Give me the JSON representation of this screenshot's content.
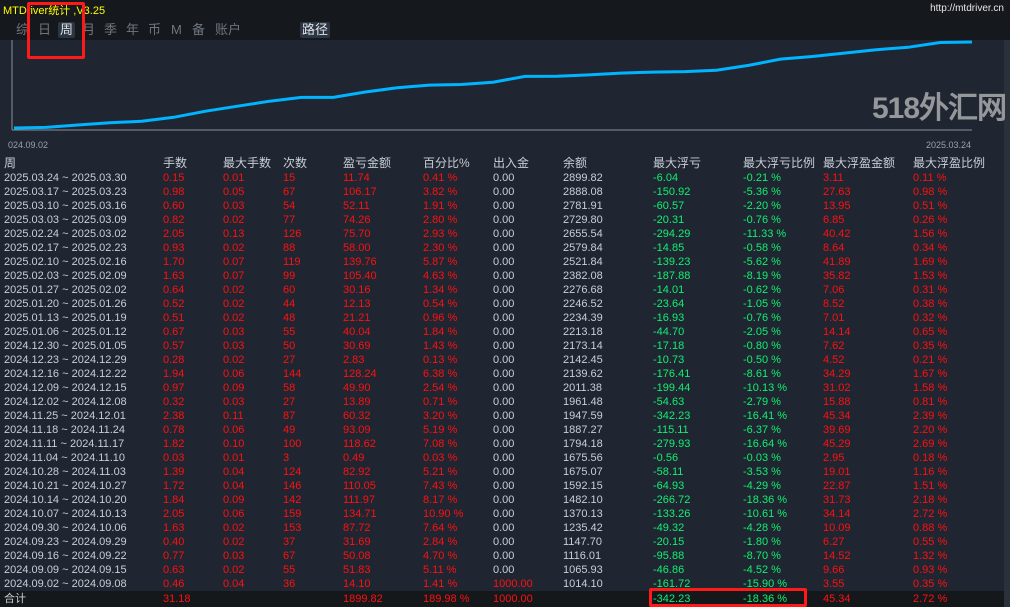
{
  "app": {
    "title": "MTDriver统计 ,V3.25",
    "url": "http://mtdriver.cn"
  },
  "tabs": [
    {
      "label": "综"
    },
    {
      "label": "日"
    },
    {
      "label": "周",
      "active": true
    },
    {
      "label": "月"
    },
    {
      "label": "季"
    },
    {
      "label": "年"
    },
    {
      "label": "币"
    },
    {
      "label": "M"
    },
    {
      "label": "备"
    },
    {
      "label": "账户"
    },
    {
      "label": "路径",
      "active": true
    }
  ],
  "chart": {
    "x_start": "024.09.02",
    "x_end": "2025.03.24",
    "line_color": "#00b4ff"
  },
  "table": {
    "headers": [
      "周",
      "手数",
      "最大手数",
      "次数",
      "盈亏金额",
      "百分比%",
      "出入金",
      "余额",
      "最大浮亏",
      "最大浮亏比例",
      "最大浮盈金额",
      "最大浮盈比例"
    ],
    "rows": [
      [
        "2025.03.24 ~ 2025.03.30",
        "0.15",
        "0.01",
        "15",
        "11.74",
        "0.41 %",
        "0.00",
        "2899.82",
        "-6.04",
        "-0.21 %",
        "3.11",
        "0.11 %"
      ],
      [
        "2025.03.17 ~ 2025.03.23",
        "0.98",
        "0.05",
        "67",
        "106.17",
        "3.82 %",
        "0.00",
        "2888.08",
        "-150.92",
        "-5.36 %",
        "27.63",
        "0.98 %"
      ],
      [
        "2025.03.10 ~ 2025.03.16",
        "0.60",
        "0.03",
        "54",
        "52.11",
        "1.91 %",
        "0.00",
        "2781.91",
        "-60.57",
        "-2.20 %",
        "13.95",
        "0.51 %"
      ],
      [
        "2025.03.03 ~ 2025.03.09",
        "0.82",
        "0.02",
        "77",
        "74.26",
        "2.80 %",
        "0.00",
        "2729.80",
        "-20.31",
        "-0.76 %",
        "6.85",
        "0.26 %"
      ],
      [
        "2025.02.24 ~ 2025.03.02",
        "2.05",
        "0.13",
        "126",
        "75.70",
        "2.93 %",
        "0.00",
        "2655.54",
        "-294.29",
        "-11.33 %",
        "40.42",
        "1.56 %"
      ],
      [
        "2025.02.17 ~ 2025.02.23",
        "0.93",
        "0.02",
        "88",
        "58.00",
        "2.30 %",
        "0.00",
        "2579.84",
        "-14.85",
        "-0.58 %",
        "8.64",
        "0.34 %"
      ],
      [
        "2025.02.10 ~ 2025.02.16",
        "1.70",
        "0.07",
        "119",
        "139.76",
        "5.87 %",
        "0.00",
        "2521.84",
        "-139.23",
        "-5.62 %",
        "41.89",
        "1.69 %"
      ],
      [
        "2025.02.03 ~ 2025.02.09",
        "1.63",
        "0.07",
        "99",
        "105.40",
        "4.63 %",
        "0.00",
        "2382.08",
        "-187.88",
        "-8.19 %",
        "35.82",
        "1.53 %"
      ],
      [
        "2025.01.27 ~ 2025.02.02",
        "0.64",
        "0.02",
        "60",
        "30.16",
        "1.34 %",
        "0.00",
        "2276.68",
        "-14.01",
        "-0.62 %",
        "7.06",
        "0.31 %"
      ],
      [
        "2025.01.20 ~ 2025.01.26",
        "0.52",
        "0.02",
        "44",
        "12.13",
        "0.54 %",
        "0.00",
        "2246.52",
        "-23.64",
        "-1.05 %",
        "8.52",
        "0.38 %"
      ],
      [
        "2025.01.13 ~ 2025.01.19",
        "0.51",
        "0.02",
        "48",
        "21.21",
        "0.96 %",
        "0.00",
        "2234.39",
        "-16.93",
        "-0.76 %",
        "7.01",
        "0.32 %"
      ],
      [
        "2025.01.06 ~ 2025.01.12",
        "0.67",
        "0.03",
        "55",
        "40.04",
        "1.84 %",
        "0.00",
        "2213.18",
        "-44.70",
        "-2.05 %",
        "14.14",
        "0.65 %"
      ],
      [
        "2024.12.30 ~ 2025.01.05",
        "0.57",
        "0.03",
        "50",
        "30.69",
        "1.43 %",
        "0.00",
        "2173.14",
        "-17.18",
        "-0.80 %",
        "7.62",
        "0.35 %"
      ],
      [
        "2024.12.23 ~ 2024.12.29",
        "0.28",
        "0.02",
        "27",
        "2.83",
        "0.13 %",
        "0.00",
        "2142.45",
        "-10.73",
        "-0.50 %",
        "4.52",
        "0.21 %"
      ],
      [
        "2024.12.16 ~ 2024.12.22",
        "1.94",
        "0.06",
        "144",
        "128.24",
        "6.38 %",
        "0.00",
        "2139.62",
        "-176.41",
        "-8.61 %",
        "34.29",
        "1.67 %"
      ],
      [
        "2024.12.09 ~ 2024.12.15",
        "0.97",
        "0.09",
        "58",
        "49.90",
        "2.54 %",
        "0.00",
        "2011.38",
        "-199.44",
        "-10.13 %",
        "31.02",
        "1.58 %"
      ],
      [
        "2024.12.02 ~ 2024.12.08",
        "0.32",
        "0.03",
        "27",
        "13.89",
        "0.71 %",
        "0.00",
        "1961.48",
        "-54.63",
        "-2.79 %",
        "15.88",
        "0.81 %"
      ],
      [
        "2024.11.25 ~ 2024.12.01",
        "2.38",
        "0.11",
        "87",
        "60.32",
        "3.20 %",
        "0.00",
        "1947.59",
        "-342.23",
        "-16.41 %",
        "45.34",
        "2.39 %"
      ],
      [
        "2024.11.18 ~ 2024.11.24",
        "0.78",
        "0.06",
        "49",
        "93.09",
        "5.19 %",
        "0.00",
        "1887.27",
        "-115.11",
        "-6.37 %",
        "39.69",
        "2.20 %"
      ],
      [
        "2024.11.11 ~ 2024.11.17",
        "1.82",
        "0.10",
        "100",
        "118.62",
        "7.08 %",
        "0.00",
        "1794.18",
        "-279.93",
        "-16.64 %",
        "45.29",
        "2.69 %"
      ],
      [
        "2024.11.04 ~ 2024.11.10",
        "0.03",
        "0.01",
        "3",
        "0.49",
        "0.03 %",
        "0.00",
        "1675.56",
        "-0.56",
        "-0.03 %",
        "2.95",
        "0.18 %"
      ],
      [
        "2024.10.28 ~ 2024.11.03",
        "1.39",
        "0.04",
        "124",
        "82.92",
        "5.21 %",
        "0.00",
        "1675.07",
        "-58.11",
        "-3.53 %",
        "19.01",
        "1.16 %"
      ],
      [
        "2024.10.21 ~ 2024.10.27",
        "1.72",
        "0.04",
        "146",
        "110.05",
        "7.43 %",
        "0.00",
        "1592.15",
        "-64.93",
        "-4.29 %",
        "22.87",
        "1.51 %"
      ],
      [
        "2024.10.14 ~ 2024.10.20",
        "1.84",
        "0.09",
        "142",
        "111.97",
        "8.17 %",
        "0.00",
        "1482.10",
        "-266.72",
        "-18.36 %",
        "31.73",
        "2.18 %"
      ],
      [
        "2024.10.07 ~ 2024.10.13",
        "2.05",
        "0.06",
        "159",
        "134.71",
        "10.90 %",
        "0.00",
        "1370.13",
        "-133.26",
        "-10.61 %",
        "34.14",
        "2.72 %"
      ],
      [
        "2024.09.30 ~ 2024.10.06",
        "1.63",
        "0.02",
        "153",
        "87.72",
        "7.64 %",
        "0.00",
        "1235.42",
        "-49.32",
        "-4.28 %",
        "10.09",
        "0.88 %"
      ],
      [
        "2024.09.23 ~ 2024.09.29",
        "0.40",
        "0.02",
        "37",
        "31.69",
        "2.84 %",
        "0.00",
        "1147.70",
        "-20.15",
        "-1.80 %",
        "6.27",
        "0.55 %"
      ],
      [
        "2024.09.16 ~ 2024.09.22",
        "0.77",
        "0.03",
        "67",
        "50.08",
        "4.70 %",
        "0.00",
        "1116.01",
        "-95.88",
        "-8.70 %",
        "14.52",
        "1.32 %"
      ],
      [
        "2024.09.09 ~ 2024.09.15",
        "0.63",
        "0.02",
        "55",
        "51.83",
        "5.11 %",
        "0.00",
        "1065.93",
        "-46.86",
        "-4.52 %",
        "9.66",
        "0.93 %"
      ],
      [
        "2024.09.02 ~ 2024.09.08",
        "0.46",
        "0.04",
        "36",
        "14.10",
        "1.41 %",
        "1000.00",
        "1014.10",
        "-161.72",
        "-15.90 %",
        "3.55",
        "0.35 %"
      ]
    ],
    "total": [
      "合计",
      "31.18",
      "",
      "",
      "1899.82",
      "189.98 %",
      "1000.00",
      "",
      "-342.23",
      "-18.36 %",
      "45.34",
      "2.72 %"
    ]
  },
  "colors": {
    "profit": "#ff1010",
    "drawdown": "#10f070",
    "text": "#c9ced6",
    "background": "#1f2631"
  },
  "watermark": "518外汇网"
}
